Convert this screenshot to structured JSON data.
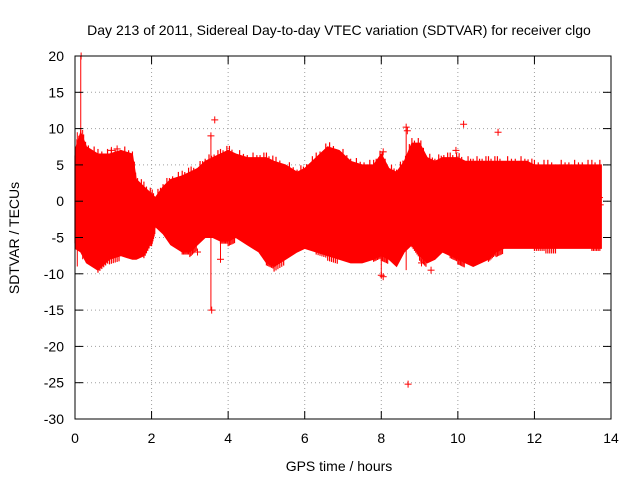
{
  "chart_data": {
    "type": "scatter",
    "title": "Day 213 of 2011, Sidereal Day-to-day VTEC variation (SDTVAR) for receiver clgo",
    "xlabel": "GPS time / hours",
    "ylabel": "SDTVAR / TECUs",
    "xlim": [
      0,
      14
    ],
    "ylim": [
      -30,
      20
    ],
    "xticks": [
      0,
      2,
      4,
      6,
      8,
      10,
      12,
      14
    ],
    "yticks": [
      20,
      15,
      10,
      5,
      0,
      -5,
      -10,
      -15,
      -20,
      -25,
      -30
    ],
    "grid": true,
    "marker": "+",
    "series_color": "#ff0000",
    "data_extent_hours": [
      0,
      13.75
    ],
    "band": {
      "x": [
        0.0,
        0.15,
        0.3,
        0.6,
        0.9,
        1.2,
        1.5,
        1.6,
        1.8,
        2.0,
        2.1,
        2.3,
        2.5,
        2.8,
        3.0,
        3.2,
        3.4,
        3.6,
        3.8,
        4.0,
        4.2,
        4.5,
        4.8,
        5.0,
        5.2,
        5.5,
        5.8,
        6.0,
        6.3,
        6.6,
        6.9,
        7.2,
        7.5,
        7.8,
        8.0,
        8.2,
        8.4,
        8.6,
        8.8,
        9.0,
        9.2,
        9.4,
        9.6,
        9.8,
        10.0,
        10.2,
        10.4,
        10.6,
        10.8,
        11.0,
        11.2,
        11.5,
        11.8,
        12.0,
        12.3,
        12.6,
        12.9,
        13.2,
        13.5,
        13.75
      ],
      "upper": [
        7.0,
        9.5,
        7.5,
        6.5,
        6.5,
        7.0,
        6.5,
        3.0,
        2.0,
        1.0,
        0.5,
        2.0,
        3.0,
        3.5,
        4.0,
        4.5,
        5.5,
        6.0,
        6.5,
        7.0,
        6.5,
        6.0,
        6.0,
        6.0,
        5.5,
        5.0,
        4.0,
        4.5,
        6.0,
        7.5,
        7.0,
        5.5,
        5.0,
        5.0,
        6.5,
        4.5,
        4.0,
        5.5,
        8.0,
        8.0,
        6.0,
        5.5,
        6.0,
        6.0,
        6.0,
        5.5,
        5.5,
        5.5,
        5.5,
        5.5,
        5.5,
        5.5,
        5.5,
        5.0,
        5.0,
        5.0,
        5.0,
        5.0,
        5.0,
        5.0
      ],
      "lower": [
        -6.5,
        -7.0,
        -8.5,
        -9.5,
        -8.0,
        -7.5,
        -8.0,
        -8.0,
        -7.5,
        -5.5,
        -3.5,
        -4.5,
        -6.0,
        -7.0,
        -7.0,
        -6.0,
        -5.0,
        -5.0,
        -5.5,
        -5.5,
        -5.0,
        -6.0,
        -7.0,
        -8.5,
        -9.0,
        -8.0,
        -7.0,
        -6.5,
        -7.0,
        -7.5,
        -8.0,
        -8.5,
        -8.5,
        -8.0,
        -7.5,
        -8.0,
        -9.0,
        -7.0,
        -6.0,
        -7.5,
        -8.5,
        -8.0,
        -7.0,
        -7.5,
        -8.0,
        -8.5,
        -9.0,
        -8.5,
        -8.0,
        -7.0,
        -6.5,
        -6.5,
        -6.5,
        -6.5,
        -6.5,
        -6.5,
        -6.5,
        -6.5,
        -6.5,
        -6.5
      ]
    },
    "spikes": [
      {
        "x": 0.15,
        "y_min": -5,
        "y_max": 20
      },
      {
        "x": 0.06,
        "y_min": -9,
        "y_max": 9.5
      },
      {
        "x": 0.2,
        "y_min": -8,
        "y_max": 9.8
      },
      {
        "x": 3.55,
        "y_min": -15,
        "y_max": 9.0
      },
      {
        "x": 3.8,
        "y_min": -8,
        "y_max": 3.0
      },
      {
        "x": 8.0,
        "y_min": -10.5,
        "y_max": 6.5
      },
      {
        "x": 8.65,
        "y_min": -9.5,
        "y_max": 10.0
      }
    ],
    "outliers": [
      {
        "x": 0.16,
        "y": 20
      },
      {
        "x": 3.65,
        "y": 11.2
      },
      {
        "x": 3.55,
        "y": 9.0
      },
      {
        "x": 3.57,
        "y": -15.0
      },
      {
        "x": 8.65,
        "y": 10.2
      },
      {
        "x": 8.68,
        "y": 9.7
      },
      {
        "x": 8.7,
        "y": -25.2
      },
      {
        "x": 10.15,
        "y": 10.6
      },
      {
        "x": 11.05,
        "y": 9.5
      },
      {
        "x": 9.95,
        "y": 7.0
      },
      {
        "x": 8.05,
        "y": 6.8
      },
      {
        "x": 1.1,
        "y": 7.2
      },
      {
        "x": 1.4,
        "y": 6.3
      },
      {
        "x": 0.95,
        "y": 7.0
      },
      {
        "x": 8.0,
        "y": -10.2
      },
      {
        "x": 8.05,
        "y": -10.4
      },
      {
        "x": 9.3,
        "y": -9.5
      },
      {
        "x": 10.0,
        "y": -7.6
      },
      {
        "x": 10.2,
        "y": -7.0
      },
      {
        "x": 9.05,
        "y": -8.5
      },
      {
        "x": 3.8,
        "y": -8.0
      },
      {
        "x": 3.2,
        "y": -7.0
      },
      {
        "x": 13.7,
        "y": 0.5
      },
      {
        "x": 13.72,
        "y": -0.5
      }
    ]
  }
}
